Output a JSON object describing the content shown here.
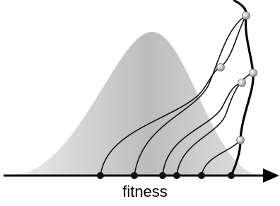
{
  "axis_label": "fitness"
}
